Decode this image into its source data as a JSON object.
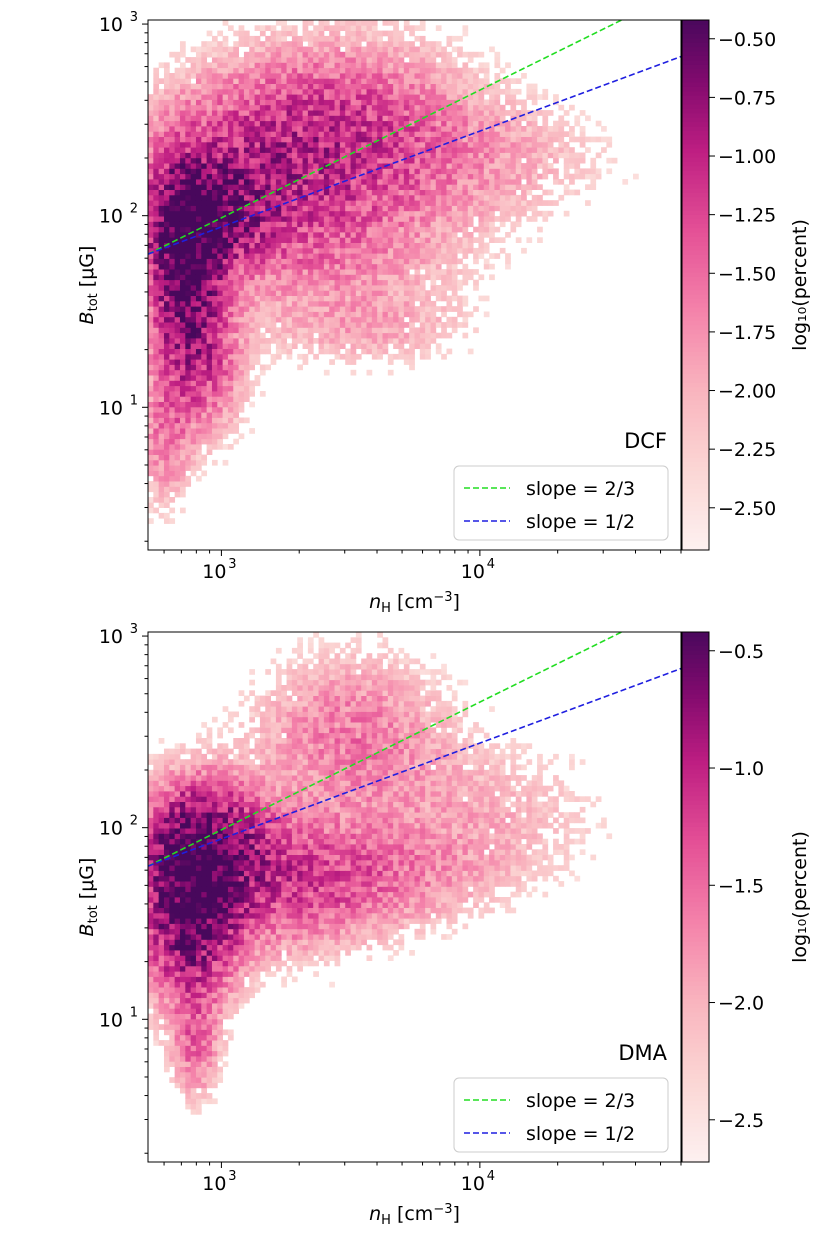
{
  "chart_data": [
    {
      "type": "heatmap",
      "panel_label": "DCF",
      "xlabel": {
        "sym": "n",
        "sub": "H",
        "unit": " [cm",
        "sup": "−3",
        "close": "]"
      },
      "ylabel": {
        "sym": "B",
        "sub": "tot",
        "unit": " [μG]"
      },
      "xscale": "log",
      "yscale": "log",
      "xlim": [
        520,
        60000
      ],
      "ylim": [
        1.8,
        1050
      ],
      "x_ticks": [
        {
          "value": 1000,
          "base": "10",
          "exp": "3"
        },
        {
          "value": 10000,
          "base": "10",
          "exp": "4"
        }
      ],
      "y_ticks": [
        {
          "value": 10,
          "base": "10",
          "exp": "1"
        },
        {
          "value": 100,
          "base": "10",
          "exp": "2"
        },
        {
          "value": 1000,
          "base": "10",
          "exp": "3"
        }
      ],
      "colorbar": {
        "label": "log₁₀(percent)",
        "range": [
          -2.68,
          -0.42
        ],
        "ticks": [
          "−0.50",
          "−0.75",
          "−1.00",
          "−1.25",
          "−1.50",
          "−1.75",
          "−2.00",
          "−2.25",
          "−2.50"
        ],
        "tick_values": [
          -0.5,
          -0.75,
          -1.0,
          -1.25,
          -1.5,
          -1.75,
          -2.0,
          -2.25,
          -2.5
        ]
      },
      "series": [
        {
          "name": "slope = 2/3",
          "slope": 0.6667,
          "anchor": [
            520,
            63
          ],
          "color": "#22dd22",
          "style": "dashed"
        },
        {
          "name": "slope = 1/2",
          "slope": 0.5,
          "anchor": [
            520,
            63
          ],
          "color": "#1f1fe0",
          "style": "dashed"
        }
      ],
      "density_blobs": [
        {
          "logx": 2.86,
          "logy": 1.72,
          "sx": 0.09,
          "sy": 0.35,
          "amp": 1.55
        },
        {
          "logx": 2.95,
          "logy": 2.0,
          "sx": 0.16,
          "sy": 0.18,
          "amp": 0.9
        },
        {
          "logx": 3.15,
          "logy": 2.3,
          "sx": 0.3,
          "sy": 0.3,
          "amp": 0.55
        },
        {
          "logx": 3.5,
          "logy": 2.55,
          "sx": 0.32,
          "sy": 0.28,
          "amp": 0.45
        },
        {
          "logx": 3.4,
          "logy": 1.9,
          "sx": 0.38,
          "sy": 0.35,
          "amp": 0.4
        },
        {
          "logx": 4.0,
          "logy": 2.3,
          "sx": 0.35,
          "sy": 0.22,
          "amp": 0.22
        },
        {
          "logx": 3.6,
          "logy": 1.4,
          "sx": 0.25,
          "sy": 0.12,
          "amp": 0.15
        },
        {
          "logx": 2.78,
          "logy": 0.85,
          "sx": 0.07,
          "sy": 0.25,
          "amp": 0.4
        },
        {
          "logx": 2.95,
          "logy": 1.2,
          "sx": 0.1,
          "sy": 0.25,
          "amp": 0.45
        }
      ],
      "legend": {
        "loc": "lower right"
      }
    },
    {
      "type": "heatmap",
      "panel_label": "DMA",
      "xlabel": {
        "sym": "n",
        "sub": "H",
        "unit": " [cm",
        "sup": "−3",
        "close": "]"
      },
      "ylabel": {
        "sym": "B",
        "sub": "tot",
        "unit": " [μG]"
      },
      "xscale": "log",
      "yscale": "log",
      "xlim": [
        520,
        60000
      ],
      "ylim": [
        1.8,
        1050
      ],
      "x_ticks": [
        {
          "value": 1000,
          "base": "10",
          "exp": "3"
        },
        {
          "value": 10000,
          "base": "10",
          "exp": "4"
        }
      ],
      "y_ticks": [
        {
          "value": 10,
          "base": "10",
          "exp": "1"
        },
        {
          "value": 100,
          "base": "10",
          "exp": "2"
        },
        {
          "value": 1000,
          "base": "10",
          "exp": "3"
        }
      ],
      "colorbar": {
        "label": "log₁₀(percent)",
        "range": [
          -2.68,
          -0.42
        ],
        "ticks": [
          "−0.5",
          "−1.0",
          "−1.5",
          "−2.0",
          "−2.5"
        ],
        "tick_values": [
          -0.5,
          -1.0,
          -1.5,
          -2.0,
          -2.5
        ]
      },
      "series": [
        {
          "name": "slope = 2/3",
          "slope": 0.6667,
          "anchor": [
            520,
            63
          ],
          "color": "#22dd22",
          "style": "dashed"
        },
        {
          "name": "slope = 1/2",
          "slope": 0.5,
          "anchor": [
            520,
            63
          ],
          "color": "#1f1fe0",
          "style": "dashed"
        }
      ],
      "density_blobs": [
        {
          "logx": 2.88,
          "logy": 1.6,
          "sx": 0.12,
          "sy": 0.33,
          "amp": 1.45
        },
        {
          "logx": 2.95,
          "logy": 1.95,
          "sx": 0.16,
          "sy": 0.2,
          "amp": 0.85
        },
        {
          "logx": 3.2,
          "logy": 1.7,
          "sx": 0.3,
          "sy": 0.25,
          "amp": 0.55
        },
        {
          "logx": 3.5,
          "logy": 2.5,
          "sx": 0.25,
          "sy": 0.28,
          "amp": 0.42
        },
        {
          "logx": 3.6,
          "logy": 1.75,
          "sx": 0.35,
          "sy": 0.18,
          "amp": 0.3
        },
        {
          "logx": 4.0,
          "logy": 2.1,
          "sx": 0.35,
          "sy": 0.25,
          "amp": 0.2
        },
        {
          "logx": 2.9,
          "logy": 0.85,
          "sx": 0.06,
          "sy": 0.18,
          "amp": 0.45
        }
      ],
      "legend": {
        "loc": "lower right"
      }
    }
  ],
  "colors": {
    "cmap_low": "#fdf0f0",
    "cmap_mid": "#ee70a5",
    "cmap_high": "#4a0a5c"
  }
}
